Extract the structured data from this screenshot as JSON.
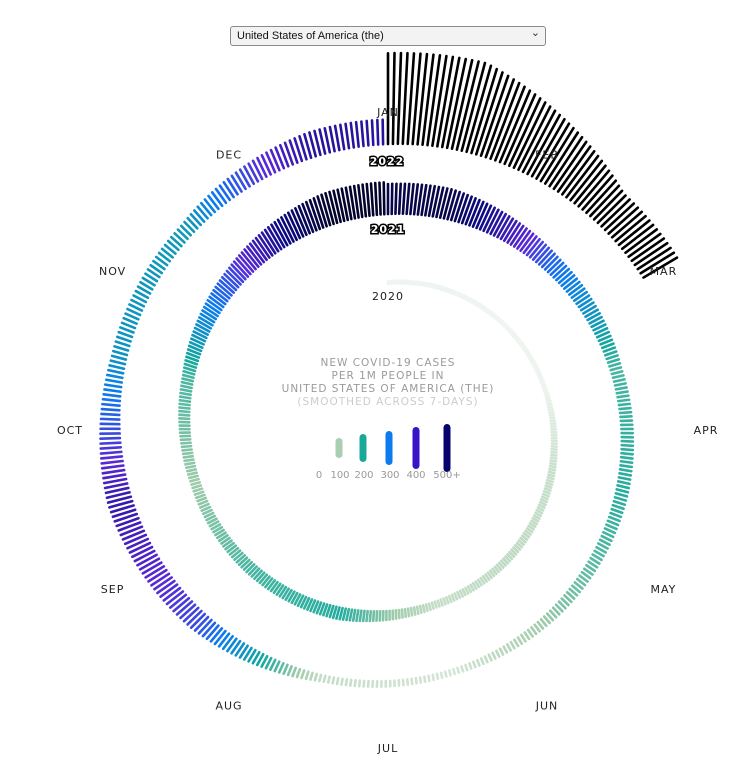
{
  "selector": {
    "selected": "United States of America (the)"
  },
  "center": {
    "line1": "NEW COVID-19 CASES",
    "line2": "PER 1M PEOPLE IN",
    "line3": "UNITED STATES OF AMERICA (THE)",
    "line4": "(SMOOTHED ACROSS 7-DAYS)"
  },
  "chart_data": {
    "type": "radial-bar",
    "months": [
      "JAN",
      "FEB",
      "MAR",
      "APR",
      "MAY",
      "JUN",
      "JUL",
      "AUG",
      "SEP",
      "OCT",
      "NOV",
      "DEC"
    ],
    "year_labels": [
      "2020",
      "2021",
      "2022"
    ],
    "legend": {
      "ticks": [
        "0",
        "100",
        "200",
        "300",
        "400",
        "500+"
      ],
      "colors": [
        "#a9cfb0",
        "#1aa89a",
        "#0d7af0",
        "#3a13c8",
        "#08046e"
      ]
    },
    "color_scale": {
      "stops": [
        0,
        60,
        120,
        200,
        300,
        400,
        520,
        700
      ],
      "colors": [
        "#eef4ef",
        "#c8dfcb",
        "#9fcbaa",
        "#12a89c",
        "#0b7bef",
        "#5a27d6",
        "#0c0a84",
        "#000000"
      ]
    },
    "monthly_cases_per_million": {
      "2020": [
        0,
        0,
        2,
        60,
        75,
        65,
        190,
        170,
        120,
        170,
        360,
        640
      ],
      "2021": [
        600,
        320,
        170,
        190,
        140,
        40,
        65,
        360,
        460,
        250,
        230,
        480
      ],
      "2022": [
        1950,
        800
      ]
    }
  }
}
